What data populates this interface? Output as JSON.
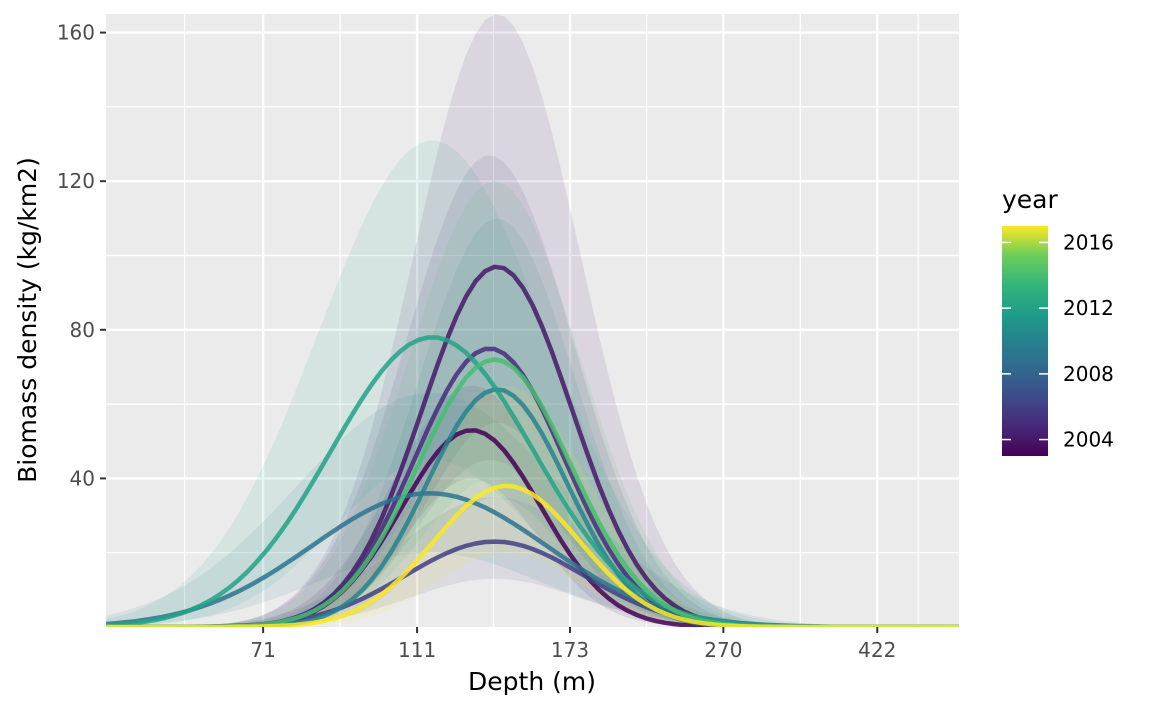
{
  "chart_data": {
    "type": "line",
    "xlabel": "Depth (m)",
    "ylabel": "Biomass density (kg/km2)",
    "x_scale": "log",
    "xlim": [
      45,
      535
    ],
    "ylim": [
      0,
      165
    ],
    "x_ticks": [
      71,
      111,
      173,
      270,
      422
    ],
    "y_ticks": [
      40,
      80,
      120,
      160
    ],
    "grid": true,
    "legend": {
      "title": "year",
      "placement": "right",
      "type": "colorbar",
      "range": [
        2003,
        2017
      ],
      "ticks": [
        2004,
        2008,
        2012,
        2016
      ]
    },
    "colors": {
      "panel_background": "#ebebeb",
      "grid": "#ffffff",
      "colormap": "viridis",
      "low": "#440154",
      "high": "#fde725"
    },
    "series": [
      {
        "year": 2003,
        "peak_depth": 130,
        "peak": 53,
        "width_log10": 0.088,
        "ci_upper_peak": 65,
        "ci_lower_peak": 40
      },
      {
        "year": 2004,
        "peak_depth": 140,
        "peak": 97,
        "width_log10": 0.094,
        "ci_upper_peak": 165,
        "ci_lower_peak": 55
      },
      {
        "year": 2005,
        "peak_depth": 137,
        "peak": 75,
        "width_log10": 0.094,
        "ci_upper_peak": 127,
        "ci_lower_peak": 45
      },
      {
        "year": 2006,
        "peak_depth": 139,
        "peak": 23,
        "width_log10": 0.112,
        "ci_upper_peak": 35,
        "ci_lower_peak": 13
      },
      {
        "year": 2009,
        "peak_depth": 115,
        "peak": 36,
        "width_log10": 0.148,
        "ci_upper_peak": 63,
        "ci_lower_peak": 20
      },
      {
        "year": 2010,
        "peak_depth": 140,
        "peak": 64,
        "width_log10": 0.088,
        "ci_upper_peak": 110,
        "ci_lower_peak": 35
      },
      {
        "year": 2012,
        "peak_depth": 116,
        "peak": 78,
        "width_log10": 0.128,
        "ci_upper_peak": 131,
        "ci_lower_peak": 45
      },
      {
        "year": 2014,
        "peak_depth": 139,
        "peak": 72,
        "width_log10": 0.096,
        "ci_upper_peak": 120,
        "ci_lower_peak": 40
      },
      {
        "year": 2017,
        "peak_depth": 144,
        "peak": 38,
        "width_log10": 0.092,
        "ci_upper_peak": 65,
        "ci_lower_peak": 20
      }
    ]
  }
}
